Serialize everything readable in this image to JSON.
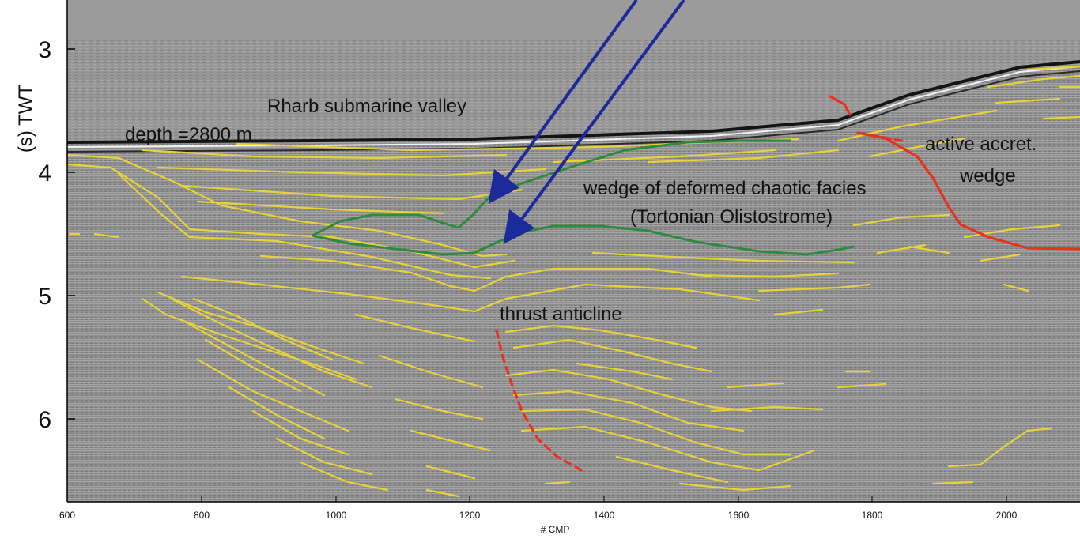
{
  "axes": {
    "y_label": "(s) TWT",
    "y_ticks": [
      "3",
      "4",
      "5",
      "6"
    ],
    "x_label": "# CMP",
    "x_ticks": [
      "600",
      "800",
      "1000",
      "1200",
      "1400",
      "1600",
      "1800",
      "2000"
    ]
  },
  "annotations": {
    "valley": "Rharb submarine valley",
    "depth": "depth =2800 m",
    "accret_line1": "active accret.",
    "accret_line2": "wedge",
    "wedge_line1": "wedge of deformed chaotic facies",
    "wedge_line2": "(Tortonian Olistostrome)",
    "anticline": "thrust anticline"
  },
  "colors": {
    "seismic_background": "#8e8e8e",
    "reflector": "#e8d23a",
    "fault": "#e8311f",
    "olistostrome_outline": "#2e8b3e",
    "arrow": "#1d2a9a"
  }
}
